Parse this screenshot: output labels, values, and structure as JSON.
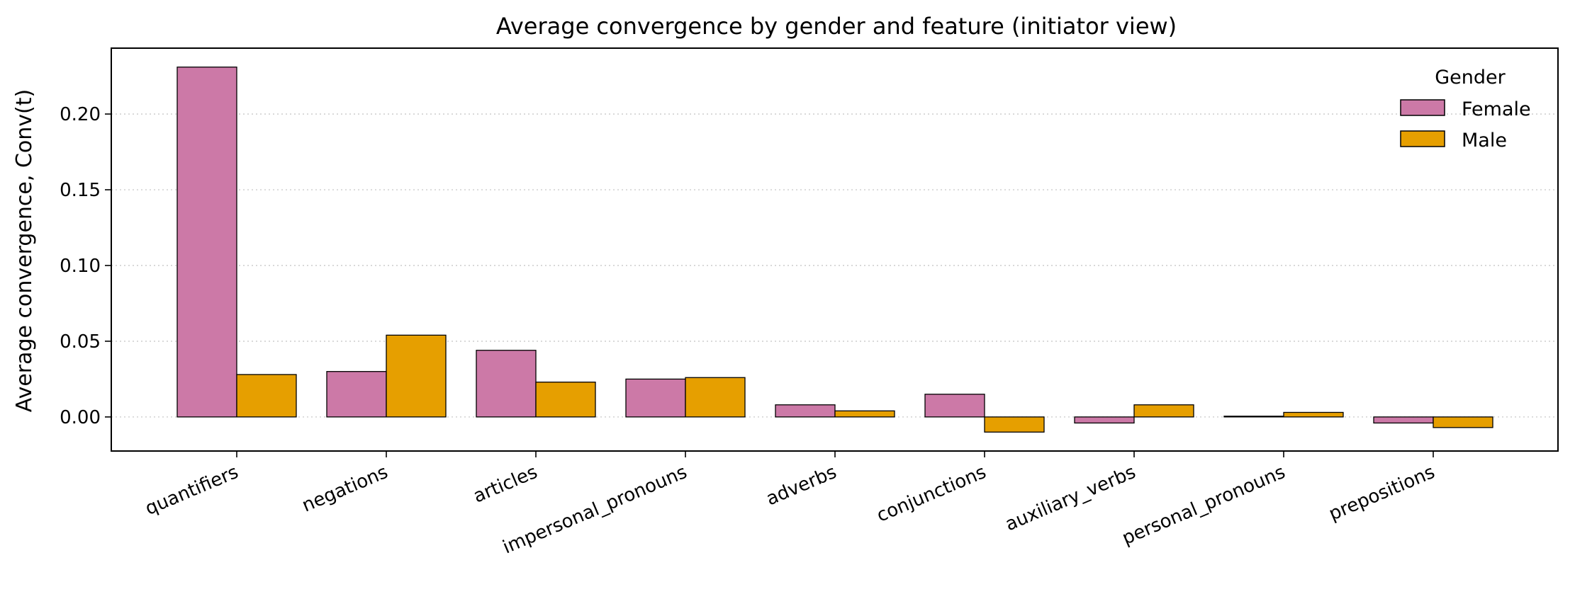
{
  "chart_data": {
    "type": "bar",
    "title": "Average convergence by gender and feature (initiator view)",
    "xlabel": "",
    "ylabel": "Average convergence, Conv(t)",
    "categories": [
      "quantifiers",
      "negations",
      "articles",
      "impersonal_pronouns",
      "adverbs",
      "conjunctions",
      "auxiliary_verbs",
      "personal_pronouns",
      "prepositions"
    ],
    "series": [
      {
        "name": "Female",
        "color": "#cc79a7",
        "values": [
          0.231,
          0.03,
          0.044,
          0.025,
          0.008,
          0.015,
          -0.004,
          0.0005,
          -0.004
        ]
      },
      {
        "name": "Male",
        "color": "#e69f00",
        "values": [
          0.028,
          0.054,
          0.023,
          0.026,
          0.004,
          -0.01,
          0.008,
          0.003,
          -0.007
        ]
      }
    ],
    "ylim": [
      -0.0225,
      0.2435
    ],
    "yticks": [
      "0.00",
      "0.05",
      "0.10",
      "0.15",
      "0.20"
    ],
    "ytick_values": [
      0.0,
      0.05,
      0.1,
      0.15,
      0.2
    ],
    "grid": "y-dotted",
    "legend": {
      "title": "Gender",
      "placement": "top-right"
    }
  }
}
